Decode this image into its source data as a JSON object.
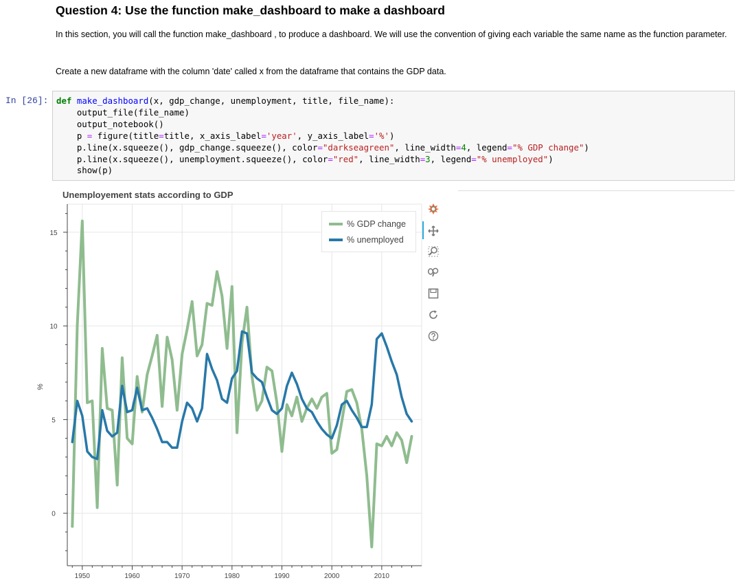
{
  "markdown": {
    "title": "Question 4: Use the function make_dashboard to make a dashboard",
    "para1": "In this section, you will call the function make_dashboard , to produce a dashboard. We will use the convention of giving each variable the same name as the function parameter.",
    "para2": "Create a new dataframe with the column 'date' called x from the dataframe that contains the GDP data."
  },
  "cell": {
    "prompt": "In [26]:",
    "code_lines": [
      "def make_dashboard(x, gdp_change, unemployment, title, file_name):",
      "    output_file(file_name)",
      "    output_notebook()",
      "    p = figure(title=title, x_axis_label='year', y_axis_label='%')",
      "    p.line(x.squeeze(), gdp_change.squeeze(), color=\"darkseagreen\", line_width=4, legend=\"% GDP change\")",
      "    p.line(x.squeeze(), unemployment.squeeze(), color=\"red\", line_width=3, legend=\"% unemployed\")",
      "    show(p)"
    ]
  },
  "toolbar": {
    "icons": [
      "bokeh-logo-icon",
      "pan-icon",
      "box-zoom-icon",
      "wheel-zoom-icon",
      "save-icon",
      "reset-icon",
      "help-icon"
    ]
  },
  "colors": {
    "gdp": "#8fbc8f",
    "unemployed": "#2878a8",
    "grid": "#e6e6e6",
    "axis": "#444444"
  },
  "chart_data": {
    "type": "line",
    "title": "Unemployement stats according to GDP",
    "xlabel": "",
    "ylabel": "%",
    "xlim": [
      1947,
      2018
    ],
    "ylim": [
      -2.8,
      16.5
    ],
    "x_ticks": [
      1950,
      1960,
      1970,
      1980,
      1990,
      2000,
      2010
    ],
    "y_ticks": [
      0,
      5,
      10,
      15
    ],
    "grid": true,
    "legend_position": "top-right",
    "x": [
      1948,
      1949,
      1950,
      1951,
      1952,
      1953,
      1954,
      1955,
      1956,
      1957,
      1958,
      1959,
      1960,
      1961,
      1962,
      1963,
      1964,
      1965,
      1966,
      1967,
      1968,
      1969,
      1970,
      1971,
      1972,
      1973,
      1974,
      1975,
      1976,
      1977,
      1978,
      1979,
      1980,
      1981,
      1982,
      1983,
      1984,
      1985,
      1986,
      1987,
      1988,
      1989,
      1990,
      1991,
      1992,
      1993,
      1994,
      1995,
      1996,
      1997,
      1998,
      1999,
      2000,
      2001,
      2002,
      2003,
      2004,
      2005,
      2006,
      2007,
      2008,
      2009,
      2010,
      2011,
      2012,
      2013,
      2014,
      2015,
      2016
    ],
    "series": [
      {
        "name": "% GDP change",
        "values": [
          -0.7,
          10.0,
          15.6,
          5.9,
          6.0,
          0.3,
          8.8,
          5.6,
          5.5,
          1.5,
          8.3,
          4.0,
          3.7,
          7.3,
          5.4,
          7.4,
          8.4,
          9.5,
          5.7,
          9.4,
          8.2,
          5.5,
          8.5,
          9.8,
          11.3,
          8.4,
          9.0,
          11.2,
          11.1,
          12.9,
          11.6,
          8.8,
          12.1,
          4.3,
          9.1,
          11.0,
          7.3,
          5.5,
          6.0,
          7.8,
          7.6,
          5.9,
          3.3,
          5.8,
          5.2,
          6.2,
          4.9,
          5.6,
          6.1,
          5.6,
          6.2,
          6.4,
          3.2,
          3.4,
          4.9,
          6.5,
          6.6,
          5.9,
          4.5,
          2.0,
          -1.8,
          3.7,
          3.6,
          4.1,
          3.6,
          4.3,
          3.9,
          2.7,
          4.1
        ]
      },
      {
        "name": "% unemployed",
        "values": [
          3.8,
          6.0,
          5.2,
          3.3,
          3.0,
          2.9,
          5.5,
          4.4,
          4.1,
          4.3,
          6.8,
          5.4,
          5.5,
          6.7,
          5.5,
          5.6,
          5.1,
          4.5,
          3.8,
          3.8,
          3.5,
          3.5,
          4.9,
          5.9,
          5.6,
          4.9,
          5.6,
          8.5,
          7.7,
          7.1,
          6.1,
          5.9,
          7.2,
          7.6,
          9.7,
          9.6,
          7.5,
          7.2,
          7.0,
          6.2,
          5.5,
          5.3,
          5.6,
          6.8,
          7.5,
          6.9,
          6.1,
          5.6,
          5.4,
          4.9,
          4.5,
          4.2,
          4.0,
          4.7,
          5.8,
          6.0,
          5.5,
          5.1,
          4.6,
          4.6,
          5.8,
          9.3,
          9.6,
          8.9,
          8.1,
          7.4,
          6.2,
          5.3,
          4.9
        ]
      }
    ]
  }
}
